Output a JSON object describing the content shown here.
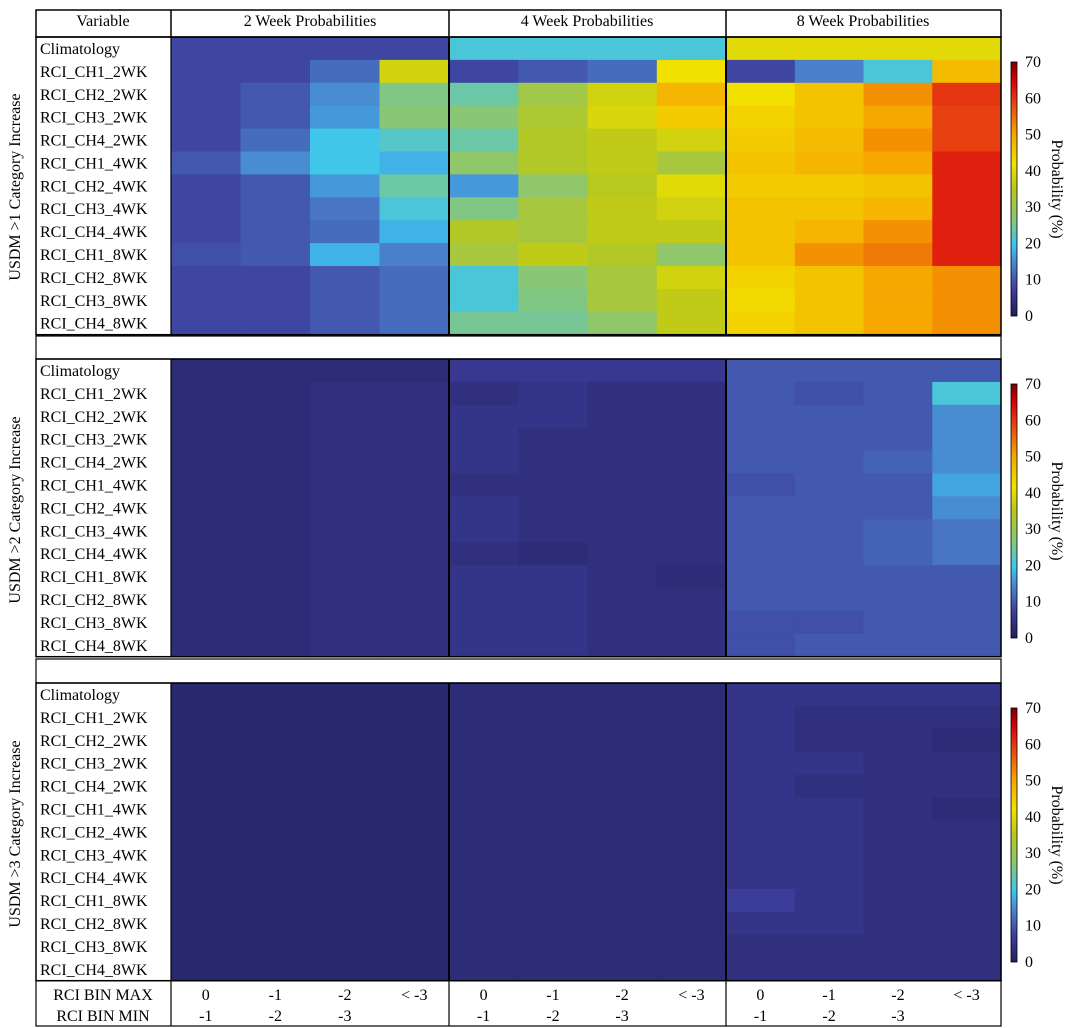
{
  "chart_data": {
    "type": "heatmap",
    "header": {
      "variable_label": "Variable",
      "columns": [
        "2 Week Probabilities",
        "4 Week Probabilities",
        "8 Week Probabilities"
      ]
    },
    "rows": [
      "Climatology",
      "RCI_CH1_2WK",
      "RCI_CH2_2WK",
      "RCI_CH3_2WK",
      "RCI_CH4_2WK",
      "RCI_CH1_4WK",
      "RCI_CH2_4WK",
      "RCI_CH3_4WK",
      "RCI_CH4_4WK",
      "RCI_CH1_8WK",
      "RCI_CH2_8WK",
      "RCI_CH3_8WK",
      "RCI_CH4_8WK"
    ],
    "bins": {
      "max_label": "RCI BIN MAX",
      "min_label": "RCI BIN MIN",
      "max": [
        "0",
        "-1",
        "-2",
        "< -3"
      ],
      "min": [
        "-1",
        "-2",
        "-3",
        ""
      ]
    },
    "colorbar": {
      "label": "Probability (%)",
      "ticks": [
        0,
        10,
        20,
        30,
        40,
        50,
        60,
        70
      ],
      "range": [
        0,
        70
      ],
      "stops": [
        [
          0.0,
          "#20205c"
        ],
        [
          0.1,
          "#3c3c9a"
        ],
        [
          0.2,
          "#4a7fcc"
        ],
        [
          0.28,
          "#3cc6f0"
        ],
        [
          0.38,
          "#87c77a"
        ],
        [
          0.5,
          "#b8c81c"
        ],
        [
          0.6,
          "#f2e000"
        ],
        [
          0.72,
          "#f6a400"
        ],
        [
          0.85,
          "#e63a12"
        ],
        [
          0.93,
          "#d80008"
        ],
        [
          1.0,
          "#780000"
        ]
      ]
    },
    "panels": [
      {
        "label": "USDM >1 Category Increase",
        "climatology": [
          8,
          21,
          40
        ],
        "values": [
          [
            [
              8,
              8,
              12,
              38
            ],
            [
              8,
              10,
              12,
              42
            ],
            [
              8,
              14,
              21,
              47
            ]
          ],
          [
            [
              8,
              10,
              15,
              26
            ],
            [
              24,
              31,
              38,
              48
            ],
            [
              42,
              46,
              52,
              60
            ]
          ],
          [
            [
              8,
              10,
              16,
              27
            ],
            [
              27,
              33,
              39,
              45
            ],
            [
              44,
              46,
              50,
              59
            ]
          ],
          [
            [
              8,
              12,
              20,
              22
            ],
            [
              24,
              34,
              36,
              38
            ],
            [
              45,
              47,
              52,
              59
            ]
          ],
          [
            [
              10,
              15,
              20,
              18
            ],
            [
              28,
              34,
              36,
              32
            ],
            [
              46,
              48,
              50,
              62
            ]
          ],
          [
            [
              8,
              10,
              16,
              24
            ],
            [
              16,
              28,
              35,
              40
            ],
            [
              45,
              45,
              46,
              62
            ]
          ],
          [
            [
              8,
              10,
              13,
              21
            ],
            [
              26,
              32,
              36,
              38
            ],
            [
              46,
              46,
              48,
              62
            ]
          ],
          [
            [
              8,
              10,
              12,
              18
            ],
            [
              34,
              32,
              36,
              36
            ],
            [
              46,
              48,
              52,
              62
            ]
          ],
          [
            [
              9,
              10,
              18,
              14
            ],
            [
              32,
              36,
              34,
              28
            ],
            [
              46,
              52,
              54,
              62
            ]
          ],
          [
            [
              8,
              8,
              10,
              12
            ],
            [
              21,
              27,
              32,
              38
            ],
            [
              44,
              46,
              50,
              52
            ]
          ],
          [
            [
              8,
              8,
              10,
              12
            ],
            [
              21,
              26,
              32,
              36
            ],
            [
              43,
              46,
              50,
              52
            ]
          ],
          [
            [
              8,
              8,
              10,
              12
            ],
            [
              25,
              25,
              28,
              36
            ],
            [
              44,
              46,
              50,
              52
            ]
          ],
          [
            [
              8,
              8,
              9,
              10
            ],
            [
              25,
              26,
              26,
              34
            ],
            [
              46,
              48,
              50,
              52
            ]
          ]
        ]
      },
      {
        "label": "USDM >2 Category Increase",
        "climatology": [
          3,
          6,
          10
        ],
        "values": [
          [
            [
              3,
              3,
              4,
              4
            ],
            [
              4,
              5,
              4,
              4
            ],
            [
              10,
              9,
              10,
              21
            ]
          ],
          [
            [
              3,
              3,
              4,
              4
            ],
            [
              5,
              5,
              4,
              4
            ],
            [
              10,
              10,
              10,
              15
            ]
          ],
          [
            [
              3,
              3,
              4,
              4
            ],
            [
              5,
              4,
              4,
              4
            ],
            [
              10,
              10,
              10,
              15
            ]
          ],
          [
            [
              3,
              3,
              4,
              4
            ],
            [
              5,
              4,
              4,
              4
            ],
            [
              10,
              10,
              11,
              15
            ]
          ],
          [
            [
              3,
              3,
              4,
              4
            ],
            [
              4,
              4,
              4,
              4
            ],
            [
              9,
              10,
              10,
              17
            ]
          ],
          [
            [
              3,
              3,
              4,
              4
            ],
            [
              5,
              4,
              4,
              4
            ],
            [
              10,
              10,
              10,
              15
            ]
          ],
          [
            [
              3,
              3,
              4,
              4
            ],
            [
              5,
              4,
              4,
              4
            ],
            [
              10,
              10,
              11,
              13
            ]
          ],
          [
            [
              3,
              3,
              4,
              4
            ],
            [
              4,
              3,
              4,
              4
            ],
            [
              10,
              10,
              11,
              13
            ]
          ],
          [
            [
              3,
              3,
              4,
              4
            ],
            [
              5,
              5,
              4,
              3
            ],
            [
              10,
              10,
              10,
              10
            ]
          ],
          [
            [
              3,
              3,
              4,
              4
            ],
            [
              5,
              5,
              4,
              4
            ],
            [
              10,
              10,
              10,
              10
            ]
          ],
          [
            [
              3,
              3,
              4,
              4
            ],
            [
              5,
              5,
              4,
              4
            ],
            [
              9,
              9,
              10,
              10
            ]
          ],
          [
            [
              3,
              3,
              4,
              4
            ],
            [
              5,
              5,
              4,
              4
            ],
            [
              9,
              10,
              10,
              10
            ]
          ],
          [
            [
              3,
              3,
              4,
              4
            ],
            [
              5,
              5,
              4,
              4
            ],
            [
              9,
              10,
              10,
              10
            ]
          ]
        ]
      },
      {
        "label": "USDM >3 Category Increase",
        "climatology": [
          2,
          3,
          5
        ],
        "values": [
          [
            [
              2,
              2,
              2,
              2
            ],
            [
              3,
              3,
              3,
              3
            ],
            [
              5,
              4,
              4,
              4
            ]
          ],
          [
            [
              2,
              2,
              2,
              2
            ],
            [
              3,
              3,
              3,
              3
            ],
            [
              5,
              4,
              4,
              3
            ]
          ],
          [
            [
              2,
              2,
              2,
              2
            ],
            [
              3,
              3,
              3,
              3
            ],
            [
              5,
              5,
              4,
              4
            ]
          ],
          [
            [
              2,
              2,
              2,
              2
            ],
            [
              3,
              3,
              3,
              3
            ],
            [
              5,
              4,
              4,
              4
            ]
          ],
          [
            [
              2,
              2,
              2,
              2
            ],
            [
              3,
              3,
              3,
              3
            ],
            [
              5,
              5,
              4,
              3
            ]
          ],
          [
            [
              2,
              2,
              2,
              2
            ],
            [
              3,
              3,
              3,
              3
            ],
            [
              5,
              5,
              4,
              4
            ]
          ],
          [
            [
              2,
              2,
              2,
              2
            ],
            [
              3,
              3,
              3,
              3
            ],
            [
              5,
              5,
              4,
              4
            ]
          ],
          [
            [
              2,
              2,
              2,
              2
            ],
            [
              3,
              3,
              3,
              3
            ],
            [
              5,
              5,
              4,
              4
            ]
          ],
          [
            [
              2,
              2,
              2,
              2
            ],
            [
              3,
              3,
              3,
              3
            ],
            [
              7,
              5,
              4,
              4
            ]
          ],
          [
            [
              2,
              2,
              2,
              2
            ],
            [
              3,
              3,
              3,
              3
            ],
            [
              5,
              5,
              4,
              4
            ]
          ],
          [
            [
              2,
              2,
              2,
              2
            ],
            [
              3,
              3,
              3,
              3
            ],
            [
              4,
              4,
              4,
              4
            ]
          ],
          [
            [
              2,
              2,
              2,
              2
            ],
            [
              3,
              3,
              3,
              3
            ],
            [
              4,
              4,
              4,
              4
            ]
          ],
          [
            [
              2,
              2,
              2,
              2
            ],
            [
              3,
              3,
              3,
              3
            ],
            [
              4,
              4,
              4,
              4
            ]
          ]
        ]
      }
    ]
  }
}
